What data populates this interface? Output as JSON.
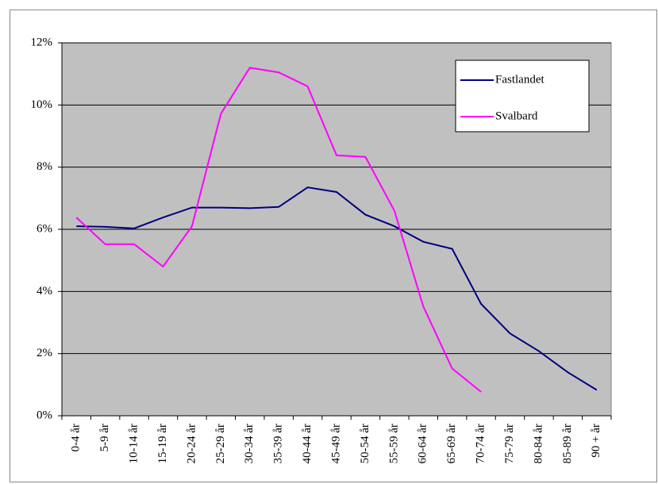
{
  "chart_data": {
    "type": "line",
    "categories": [
      "0-4 år",
      "5-9 år",
      "10-14 år",
      "15-19 år",
      "20-24 år",
      "25-29 år",
      "30-34 år",
      "35-39 år",
      "40-44 år",
      "45-49 år",
      "50-54 år",
      "55-59 år",
      "60-64 år",
      "65-69 år",
      "70-74 år",
      "75-79 år",
      "80-84 år",
      "85-89 år",
      "90 + år"
    ],
    "series": [
      {
        "name": "Fastlandet",
        "color": "#000080",
        "values": [
          6.1,
          6.08,
          6.03,
          6.38,
          6.7,
          6.7,
          6.68,
          6.72,
          7.35,
          7.2,
          6.47,
          6.1,
          5.6,
          5.37,
          3.6,
          2.65,
          2.08,
          1.4,
          0.83
        ]
      },
      {
        "name": "Svalbard",
        "color": "#ff00ff",
        "values": [
          6.38,
          5.52,
          5.52,
          4.8,
          6.1,
          9.72,
          11.2,
          11.05,
          10.6,
          8.38,
          8.33,
          6.6,
          3.52,
          1.52,
          0.77,
          null,
          null,
          null,
          null
        ]
      }
    ],
    "ylim": [
      0,
      12
    ],
    "yticks": [
      {
        "value": 0,
        "label": "0%"
      },
      {
        "value": 2,
        "label": "2%"
      },
      {
        "value": 4,
        "label": "4%"
      },
      {
        "value": 6,
        "label": "6%"
      },
      {
        "value": 8,
        "label": "8%"
      },
      {
        "value": 10,
        "label": "10%"
      },
      {
        "value": 12,
        "label": "12%"
      }
    ],
    "grid": true,
    "legend": "top-right"
  }
}
